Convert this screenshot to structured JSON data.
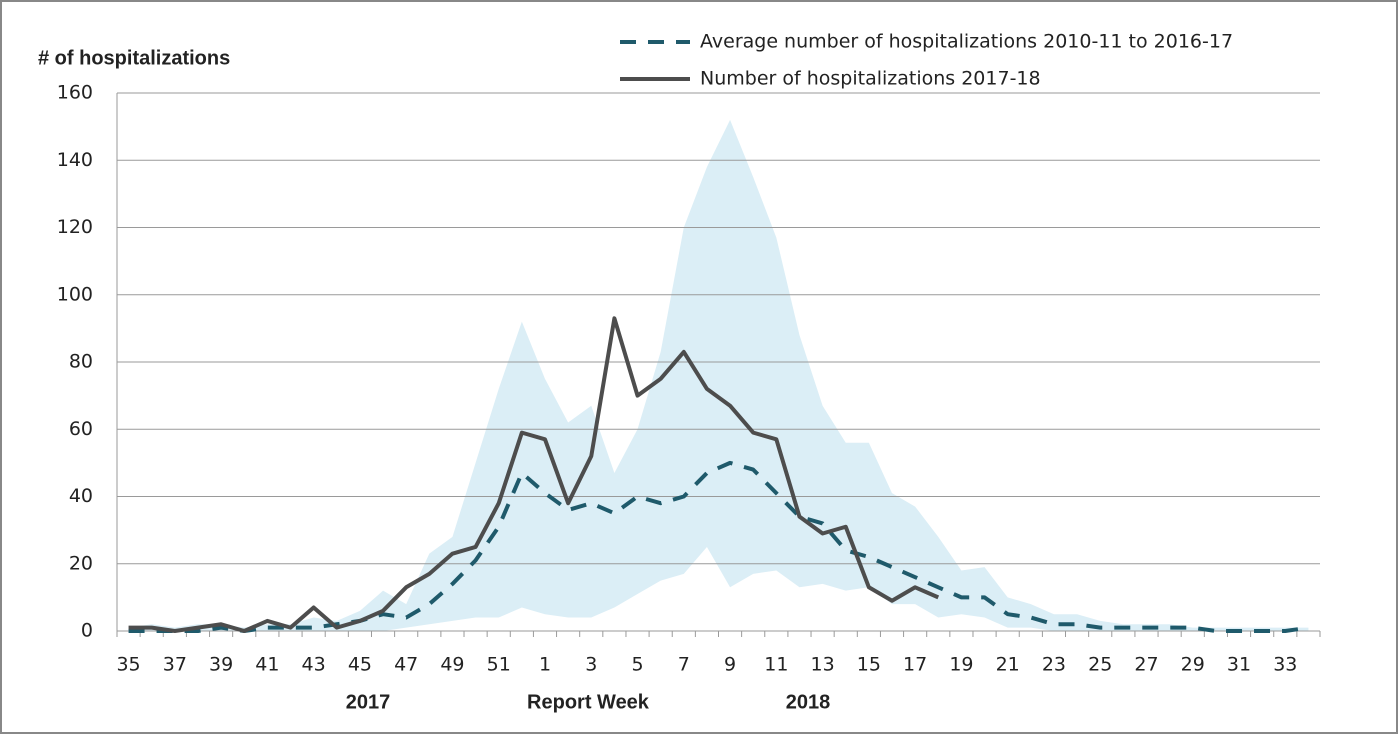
{
  "chart_data": {
    "type": "line",
    "y_label": "# of hospitalizations",
    "x_label": "Report Week",
    "x_group_labels": [
      "2017",
      "2018"
    ],
    "categories": [
      "35",
      null,
      "37",
      null,
      "39",
      null,
      "41",
      null,
      "43",
      null,
      "45",
      null,
      "47",
      null,
      "49",
      null,
      "51",
      null,
      "1",
      null,
      "3",
      null,
      "5",
      null,
      "7",
      null,
      "9",
      null,
      "11",
      null,
      "13",
      null,
      "15",
      null,
      "17",
      null,
      "19",
      null,
      "21",
      null,
      "23",
      null,
      "25",
      null,
      "27",
      null,
      "29",
      null,
      "31",
      null,
      "33",
      null
    ],
    "series": [
      {
        "name": "Average number of hospitalizations 2010-11 to 2016-17",
        "color": "#1f5a6b",
        "dashed": true,
        "values": [
          0,
          0,
          0,
          0,
          1,
          0,
          1,
          1,
          1,
          2,
          3,
          5,
          4,
          8,
          14,
          21,
          31,
          47,
          41,
          36,
          38,
          35,
          40,
          38,
          40,
          47,
          50,
          48,
          41,
          34,
          32,
          24,
          22,
          19,
          16,
          13,
          10,
          10,
          5,
          4,
          2,
          2,
          1,
          1,
          1,
          1,
          1,
          0,
          0,
          0,
          0,
          1
        ]
      },
      {
        "name": "Number of hospitalizations 2017-18",
        "color": "#4d4d4d",
        "dashed": false,
        "values": [
          1,
          1,
          0,
          1,
          2,
          0,
          3,
          1,
          7,
          1,
          3,
          6,
          13,
          17,
          23,
          25,
          38,
          59,
          57,
          38,
          52,
          93,
          70,
          75,
          83,
          72,
          67,
          59,
          57,
          34,
          29,
          31,
          13,
          9,
          13,
          10,
          null,
          null,
          null,
          null,
          null,
          null,
          null,
          null,
          null,
          null,
          null,
          null,
          null,
          null,
          null,
          null
        ]
      }
    ],
    "band": {
      "color": "#dbeef6",
      "high": [
        1,
        2,
        1,
        2,
        2,
        1,
        2,
        2,
        4,
        3,
        6,
        12,
        8,
        23,
        28,
        50,
        72,
        92,
        75,
        62,
        67,
        47,
        60,
        83,
        120,
        138,
        152,
        135,
        117,
        88,
        67,
        56,
        56,
        41,
        37,
        28,
        18,
        19,
        10,
        8,
        5,
        5,
        3,
        2,
        2,
        2,
        1,
        1,
        1,
        1,
        1,
        1
      ],
      "low": [
        0,
        0,
        0,
        0,
        0,
        0,
        0,
        0,
        0,
        0,
        0,
        0,
        1,
        2,
        3,
        4,
        4,
        7,
        5,
        4,
        4,
        7,
        11,
        15,
        17,
        25,
        13,
        17,
        18,
        13,
        14,
        12,
        13,
        8,
        8,
        4,
        5,
        4,
        1,
        1,
        0,
        0,
        0,
        0,
        0,
        0,
        0,
        0,
        0,
        0,
        0,
        0
      ]
    },
    "ylim": [
      0,
      160
    ],
    "yticks": [
      0,
      20,
      40,
      60,
      80,
      100,
      120,
      140,
      160
    ],
    "grid": true,
    "legend": "top-right"
  }
}
